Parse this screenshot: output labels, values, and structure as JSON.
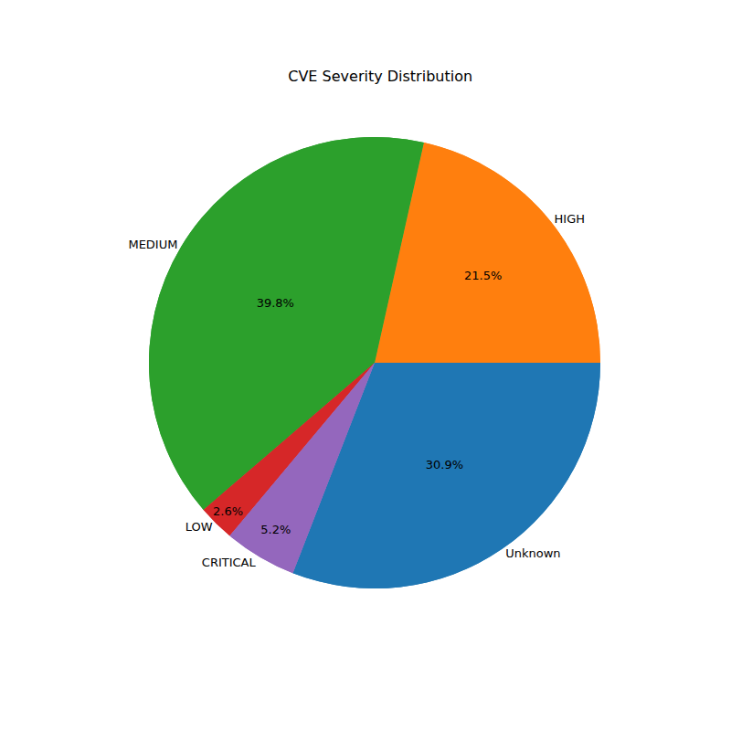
{
  "chart_data": {
    "type": "pie",
    "title": "CVE Severity Distribution",
    "categories": [
      "Unknown",
      "HIGH",
      "MEDIUM",
      "LOW",
      "CRITICAL"
    ],
    "values": [
      30.9,
      21.5,
      39.8,
      2.6,
      5.2
    ],
    "value_labels": [
      "30.9%",
      "21.5%",
      "39.8%",
      "2.6%",
      "5.2%"
    ],
    "colors": [
      "#1f77b4",
      "#ff7f0e",
      "#2ca02c",
      "#d62728",
      "#9467bd"
    ],
    "data_labels": true
  }
}
